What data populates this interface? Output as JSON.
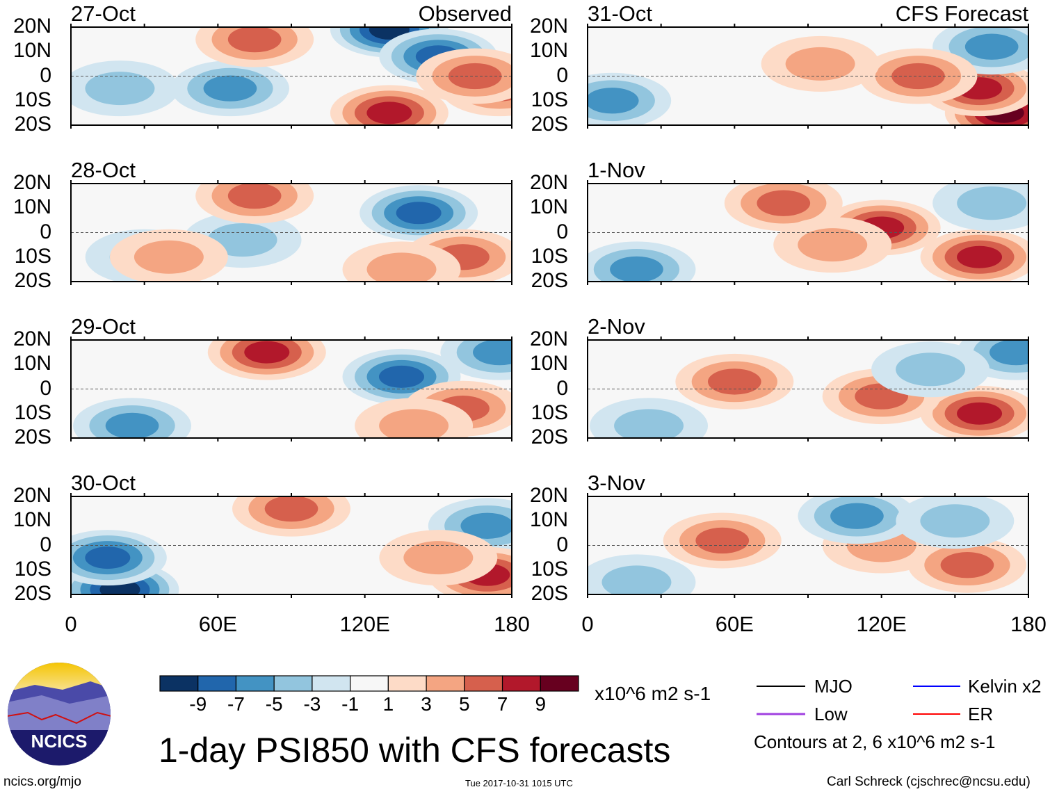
{
  "chart_data": {
    "type": "heatmap",
    "title": "1-day PSI850 with CFS forecasts",
    "units": "x10^6 m2 s-1",
    "lat_ticks": [
      "20N",
      "10N",
      "0",
      "10S",
      "20S"
    ],
    "lon_ticks": [
      "0",
      "60E",
      "120E",
      "180"
    ],
    "lon_range": [
      0,
      180
    ],
    "lat_range": [
      -20,
      20
    ],
    "columns": [
      {
        "label": "Observed"
      },
      {
        "label": "CFS Forecast"
      }
    ],
    "colorbar": {
      "labels": [
        "-9",
        "-7",
        "-5",
        "-3",
        "-1",
        "1",
        "3",
        "5",
        "7",
        "9"
      ],
      "colors": [
        "#0b3263",
        "#2166ac",
        "#4393c3",
        "#92c5de",
        "#d1e5f0",
        "#f7f7f7",
        "#fddbc7",
        "#f4a582",
        "#d6604d",
        "#b2182b",
        "#67001f"
      ]
    },
    "panels": [
      {
        "date": "27-Oct",
        "col": 0,
        "row": 0,
        "anomalies": [
          [
            130,
            19,
            -9
          ],
          [
            150,
            8,
            -6
          ],
          [
            65,
            -5,
            -5
          ],
          [
            20,
            -5,
            -3
          ],
          [
            75,
            15,
            4
          ],
          [
            130,
            -15,
            6
          ],
          [
            175,
            -5,
            5
          ],
          [
            165,
            0,
            4
          ]
        ]
      },
      {
        "date": "28-Oct",
        "col": 0,
        "row": 1,
        "anomalies": [
          [
            142,
            8,
            -6
          ],
          [
            70,
            -3,
            -3
          ],
          [
            30,
            -10,
            -2
          ],
          [
            75,
            15,
            5
          ],
          [
            160,
            -10,
            4
          ],
          [
            135,
            -15,
            3
          ],
          [
            40,
            -10,
            3
          ]
        ]
      },
      {
        "date": "29-Oct",
        "col": 0,
        "row": 2,
        "anomalies": [
          [
            135,
            5,
            -6
          ],
          [
            175,
            15,
            -5
          ],
          [
            25,
            -15,
            -5
          ],
          [
            80,
            15,
            6
          ],
          [
            160,
            -8,
            5
          ],
          [
            140,
            -15,
            3
          ]
        ]
      },
      {
        "date": "30-Oct",
        "col": 0,
        "row": 3,
        "anomalies": [
          [
            20,
            -18,
            -9
          ],
          [
            15,
            -5,
            -6
          ],
          [
            170,
            8,
            -5
          ],
          [
            90,
            15,
            5
          ],
          [
            170,
            -12,
            6
          ],
          [
            150,
            -5,
            3
          ]
        ]
      },
      {
        "date": "31-Oct",
        "col": 1,
        "row": 0,
        "anomalies": [
          [
            170,
            -15,
            9
          ],
          [
            160,
            -5,
            6
          ],
          [
            10,
            -10,
            -5
          ],
          [
            165,
            12,
            -4
          ],
          [
            135,
            0,
            4
          ],
          [
            95,
            5,
            2
          ]
        ]
      },
      {
        "date": "1-Nov",
        "col": 1,
        "row": 1,
        "anomalies": [
          [
            160,
            -10,
            7
          ],
          [
            120,
            2,
            6
          ],
          [
            80,
            12,
            4
          ],
          [
            20,
            -15,
            -4
          ],
          [
            165,
            12,
            -3
          ],
          [
            100,
            -5,
            3
          ]
        ]
      },
      {
        "date": "2-Nov",
        "col": 1,
        "row": 2,
        "anomalies": [
          [
            160,
            -10,
            7
          ],
          [
            120,
            -3,
            4
          ],
          [
            60,
            3,
            4
          ],
          [
            25,
            -15,
            -3
          ],
          [
            175,
            15,
            -4
          ],
          [
            140,
            8,
            -2
          ]
        ]
      },
      {
        "date": "3-Nov",
        "col": 1,
        "row": 3,
        "anomalies": [
          [
            55,
            2,
            5
          ],
          [
            120,
            0,
            3
          ],
          [
            155,
            -8,
            4
          ],
          [
            110,
            12,
            -4
          ],
          [
            20,
            -15,
            -3
          ],
          [
            150,
            10,
            -2
          ]
        ]
      }
    ]
  },
  "legend": {
    "items": [
      {
        "label": "MJO",
        "color": "#000000"
      },
      {
        "label": "Kelvin x2",
        "color": "#0000ff"
      },
      {
        "label": "Low",
        "color": "#a040e0"
      },
      {
        "label": "ER",
        "color": "#ff0000"
      }
    ],
    "note": "Contours at 2, 6 x10^6 m2 s-1"
  },
  "logo": {
    "text": "NCICS"
  },
  "footer": {
    "url": "ncics.org/mjo",
    "timestamp": "Tue 2017-10-31 1015 UTC",
    "credit": "Carl Schreck (cjschrec@ncsu.edu)"
  }
}
